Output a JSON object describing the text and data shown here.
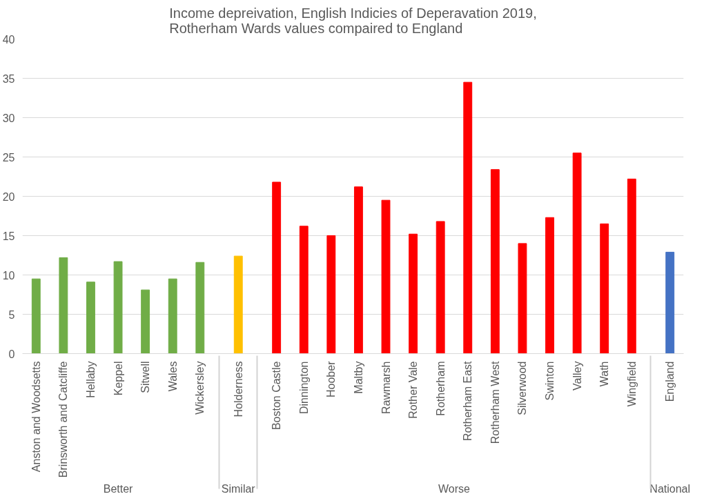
{
  "chart_data": {
    "type": "bar",
    "title": "Income depreivation, English Indicies of Deperavation 2019,\nRotherham Wards values compaired to England",
    "categories": [
      "Anston and Woodsetts",
      "Brinsworth and Catcliffe",
      "Hellaby",
      "Keppel",
      "Sitwell",
      "Wales",
      "Wickersley",
      "Holderness",
      "Boston Castle",
      "Dinnington",
      "Hoober",
      "Maltby",
      "Rawmarsh",
      "Rother Vale",
      "Rotherham",
      "Rotherham East",
      "Rotherham West",
      "Silverwood",
      "Swinton",
      "Valley",
      "Wath",
      "Wingfield",
      "England"
    ],
    "series": [
      {
        "color": "#70ad47",
        "values": [
          9.5,
          12.2,
          9.1,
          11.7,
          8.1,
          9.5,
          11.6,
          null,
          null,
          null,
          null,
          null,
          null,
          null,
          null,
          null,
          null,
          null,
          null,
          null,
          null,
          null,
          null
        ]
      },
      {
        "color": "#ffc000",
        "values": [
          null,
          null,
          null,
          null,
          null,
          null,
          null,
          12.4,
          null,
          null,
          null,
          null,
          null,
          null,
          null,
          null,
          null,
          null,
          null,
          null,
          null,
          null,
          null
        ]
      },
      {
        "color": "#ff0000",
        "values": [
          null,
          null,
          null,
          null,
          null,
          null,
          null,
          null,
          21.8,
          16.2,
          15.0,
          21.2,
          19.5,
          15.2,
          16.8,
          34.5,
          23.4,
          14.0,
          17.3,
          25.5,
          16.5,
          22.2,
          null
        ]
      },
      {
        "color": "#4472c4",
        "values": [
          null,
          null,
          null,
          null,
          null,
          null,
          null,
          null,
          null,
          null,
          null,
          null,
          null,
          null,
          null,
          null,
          null,
          null,
          null,
          null,
          null,
          null,
          12.9
        ]
      }
    ],
    "ylim": [
      0,
      40
    ],
    "yticks": [
      0,
      5,
      10,
      15,
      20,
      25,
      30,
      35,
      40
    ],
    "grid": "y",
    "annotations": [
      "Better",
      "Similar",
      "Worse",
      "National"
    ]
  }
}
